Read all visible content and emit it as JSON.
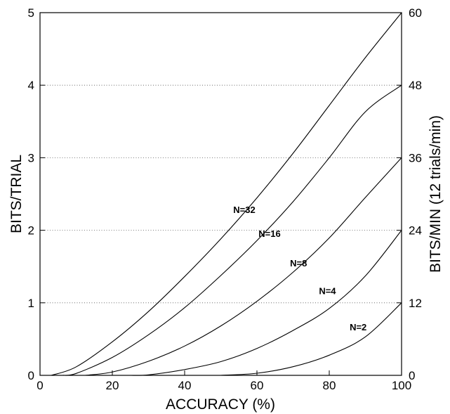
{
  "chart_data": {
    "type": "line",
    "xlabel": "ACCURACY (%)",
    "ylabel": "BITS/TRIAL",
    "y2label": "BITS/MIN (12 trials/min)",
    "xlim": [
      0,
      100
    ],
    "ylim": [
      0,
      5
    ],
    "y2lim": [
      0,
      60
    ],
    "x_ticks": [
      0,
      20,
      40,
      60,
      80,
      100
    ],
    "y_ticks": [
      0,
      1,
      2,
      3,
      4,
      5
    ],
    "y2_ticks": [
      0,
      12,
      24,
      36,
      48,
      60
    ],
    "grid": "horizontal dotted",
    "series": [
      {
        "name": "N=2",
        "values": [
          [
            50,
            0.0
          ],
          [
            60,
            0.029
          ],
          [
            70,
            0.119
          ],
          [
            80,
            0.278
          ],
          [
            90,
            0.531
          ],
          [
            100,
            1.0
          ]
        ]
      },
      {
        "name": "N=4",
        "values": [
          [
            25,
            0.0
          ],
          [
            30,
            0.007
          ],
          [
            40,
            0.08
          ],
          [
            50,
            0.189
          ],
          [
            60,
            0.371
          ],
          [
            70,
            0.619
          ],
          [
            80,
            0.922
          ],
          [
            90,
            1.371
          ],
          [
            100,
            2.0
          ]
        ]
      },
      {
        "name": "N=8",
        "values": [
          [
            12.5,
            0.0
          ],
          [
            20,
            0.046
          ],
          [
            30,
            0.194
          ],
          [
            40,
            0.404
          ],
          [
            50,
            0.681
          ],
          [
            60,
            1.021
          ],
          [
            70,
            1.422
          ],
          [
            80,
            1.894
          ],
          [
            90,
            2.453
          ],
          [
            100,
            3.0
          ]
        ]
      },
      {
        "name": "N=16",
        "values": [
          [
            6.25,
            0.0
          ],
          [
            10,
            0.026
          ],
          [
            20,
            0.247
          ],
          [
            30,
            0.559
          ],
          [
            40,
            0.933
          ],
          [
            50,
            1.376
          ],
          [
            60,
            1.858
          ],
          [
            70,
            2.395
          ],
          [
            80,
            3.0
          ],
          [
            90,
            3.634
          ],
          [
            100,
            4.0
          ]
        ]
      },
      {
        "name": "N=32",
        "values": [
          [
            3.125,
            0.0
          ],
          [
            10,
            0.117
          ],
          [
            20,
            0.462
          ],
          [
            30,
            0.88
          ],
          [
            40,
            1.362
          ],
          [
            50,
            1.881
          ],
          [
            60,
            2.447
          ],
          [
            70,
            3.062
          ],
          [
            80,
            3.721
          ],
          [
            90,
            4.381
          ],
          [
            100,
            5.0
          ]
        ]
      }
    ],
    "annotations": [
      {
        "text": "N=32",
        "x": 56.5,
        "y": 2.24
      },
      {
        "text": "N=16",
        "x": 63.5,
        "y": 1.91
      },
      {
        "text": "N=8",
        "x": 71.5,
        "y": 1.5
      },
      {
        "text": "N=4",
        "x": 79.5,
        "y": 1.12
      },
      {
        "text": "N=2",
        "x": 88.0,
        "y": 0.62
      }
    ]
  }
}
